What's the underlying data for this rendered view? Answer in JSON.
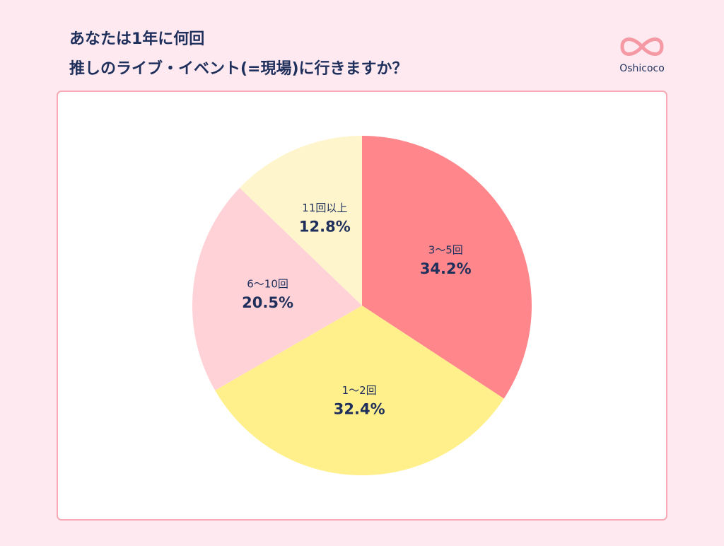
{
  "logo": "Oshicoco",
  "chart_data": {
    "type": "pie",
    "title": [
      "あなたは1年に何回",
      "推しのライブ・イベント(=現場)に行きますか？"
    ],
    "categories": [
      "3〜5回",
      "1〜2回",
      "6〜10回",
      "11回以上"
    ],
    "values": [
      34.2,
      32.4,
      20.5,
      12.8
    ],
    "value_labels": [
      "34.2%",
      "32.4%",
      "20.5%",
      "12.8%"
    ],
    "colors": [
      "#ff878c",
      "#fff08c",
      "#ffd2d7",
      "#fff5cc"
    ]
  }
}
